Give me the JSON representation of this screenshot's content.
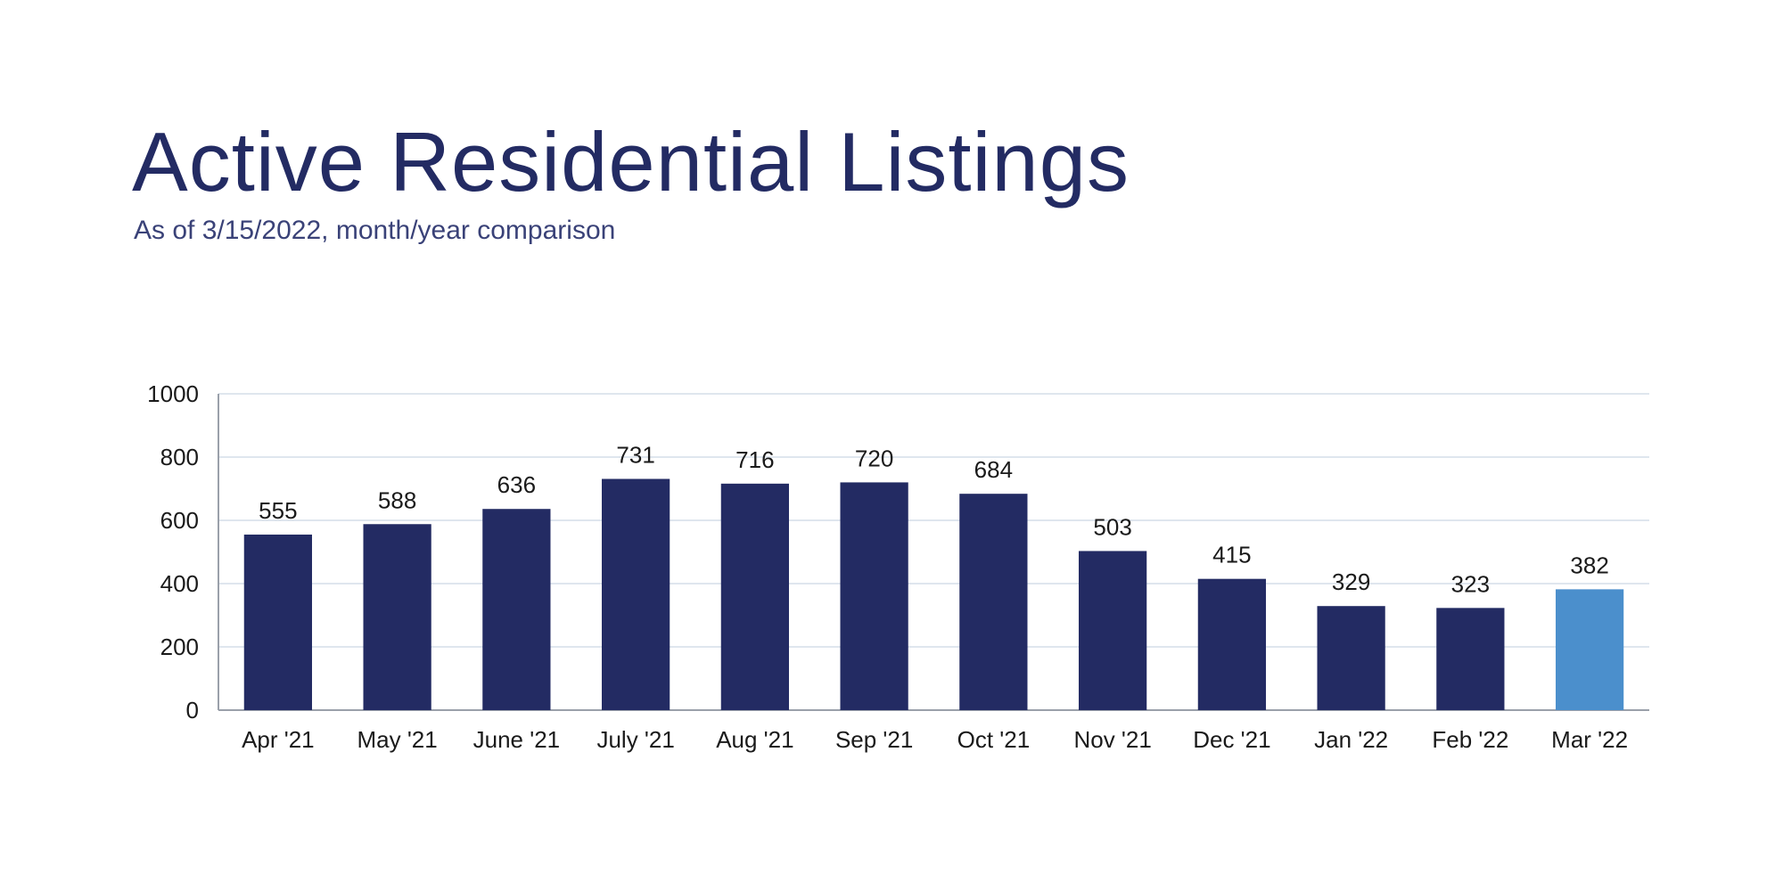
{
  "header": {
    "title": "Active Residential Listings",
    "subtitle": "As of 3/15/2022, month/year comparison"
  },
  "colors": {
    "title": "#232b63",
    "bar_primary": "#232b63",
    "bar_highlight": "#4b8fcc",
    "gridline": "#dfe6ee",
    "axis": "#9aa0aa",
    "text": "#1a1a1a"
  },
  "chart_data": {
    "type": "bar",
    "title": "Active Residential Listings",
    "subtitle": "As of 3/15/2022, month/year comparison",
    "xlabel": "",
    "ylabel": "",
    "categories": [
      "Apr '21",
      "May '21",
      "June '21",
      "July '21",
      "Aug '21",
      "Sep '21",
      "Oct '21",
      "Nov '21",
      "Dec '21",
      "Jan '22",
      "Feb '22",
      "Mar '22"
    ],
    "values": [
      555,
      588,
      636,
      731,
      716,
      720,
      684,
      503,
      415,
      329,
      323,
      382
    ],
    "highlight_index": 11,
    "ylim": [
      0,
      1000
    ],
    "yticks": [
      0,
      200,
      400,
      600,
      800,
      1000
    ],
    "grid": true,
    "legend": "none",
    "data_labels": true
  }
}
